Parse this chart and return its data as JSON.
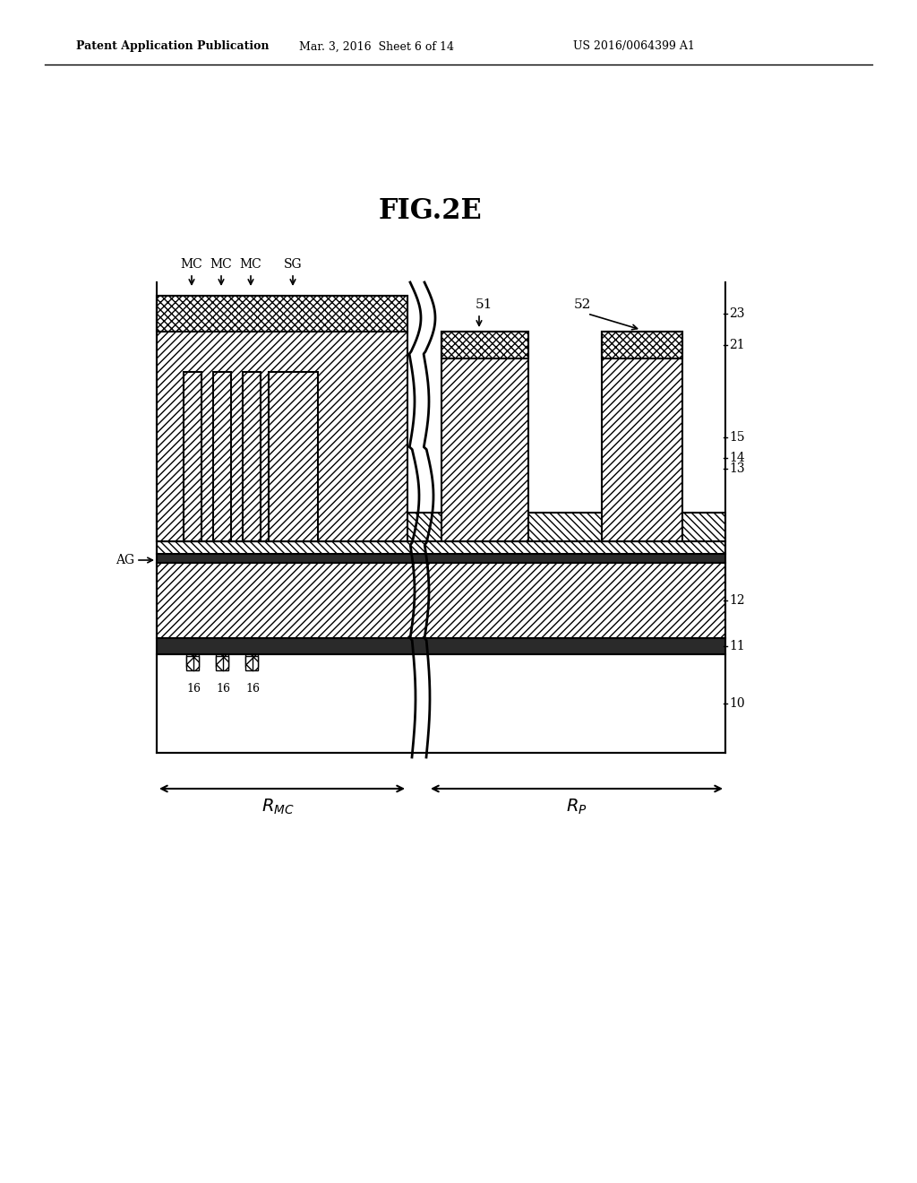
{
  "title": "FIG.2E",
  "header_left": "Patent Application Publication",
  "header_mid": "Mar. 3, 2016  Sheet 6 of 14",
  "header_right": "US 2016/0064399 A1",
  "bg_color": "#ffffff",
  "line_color": "#000000",
  "fig_width": 10.24,
  "fig_height": 13.2
}
